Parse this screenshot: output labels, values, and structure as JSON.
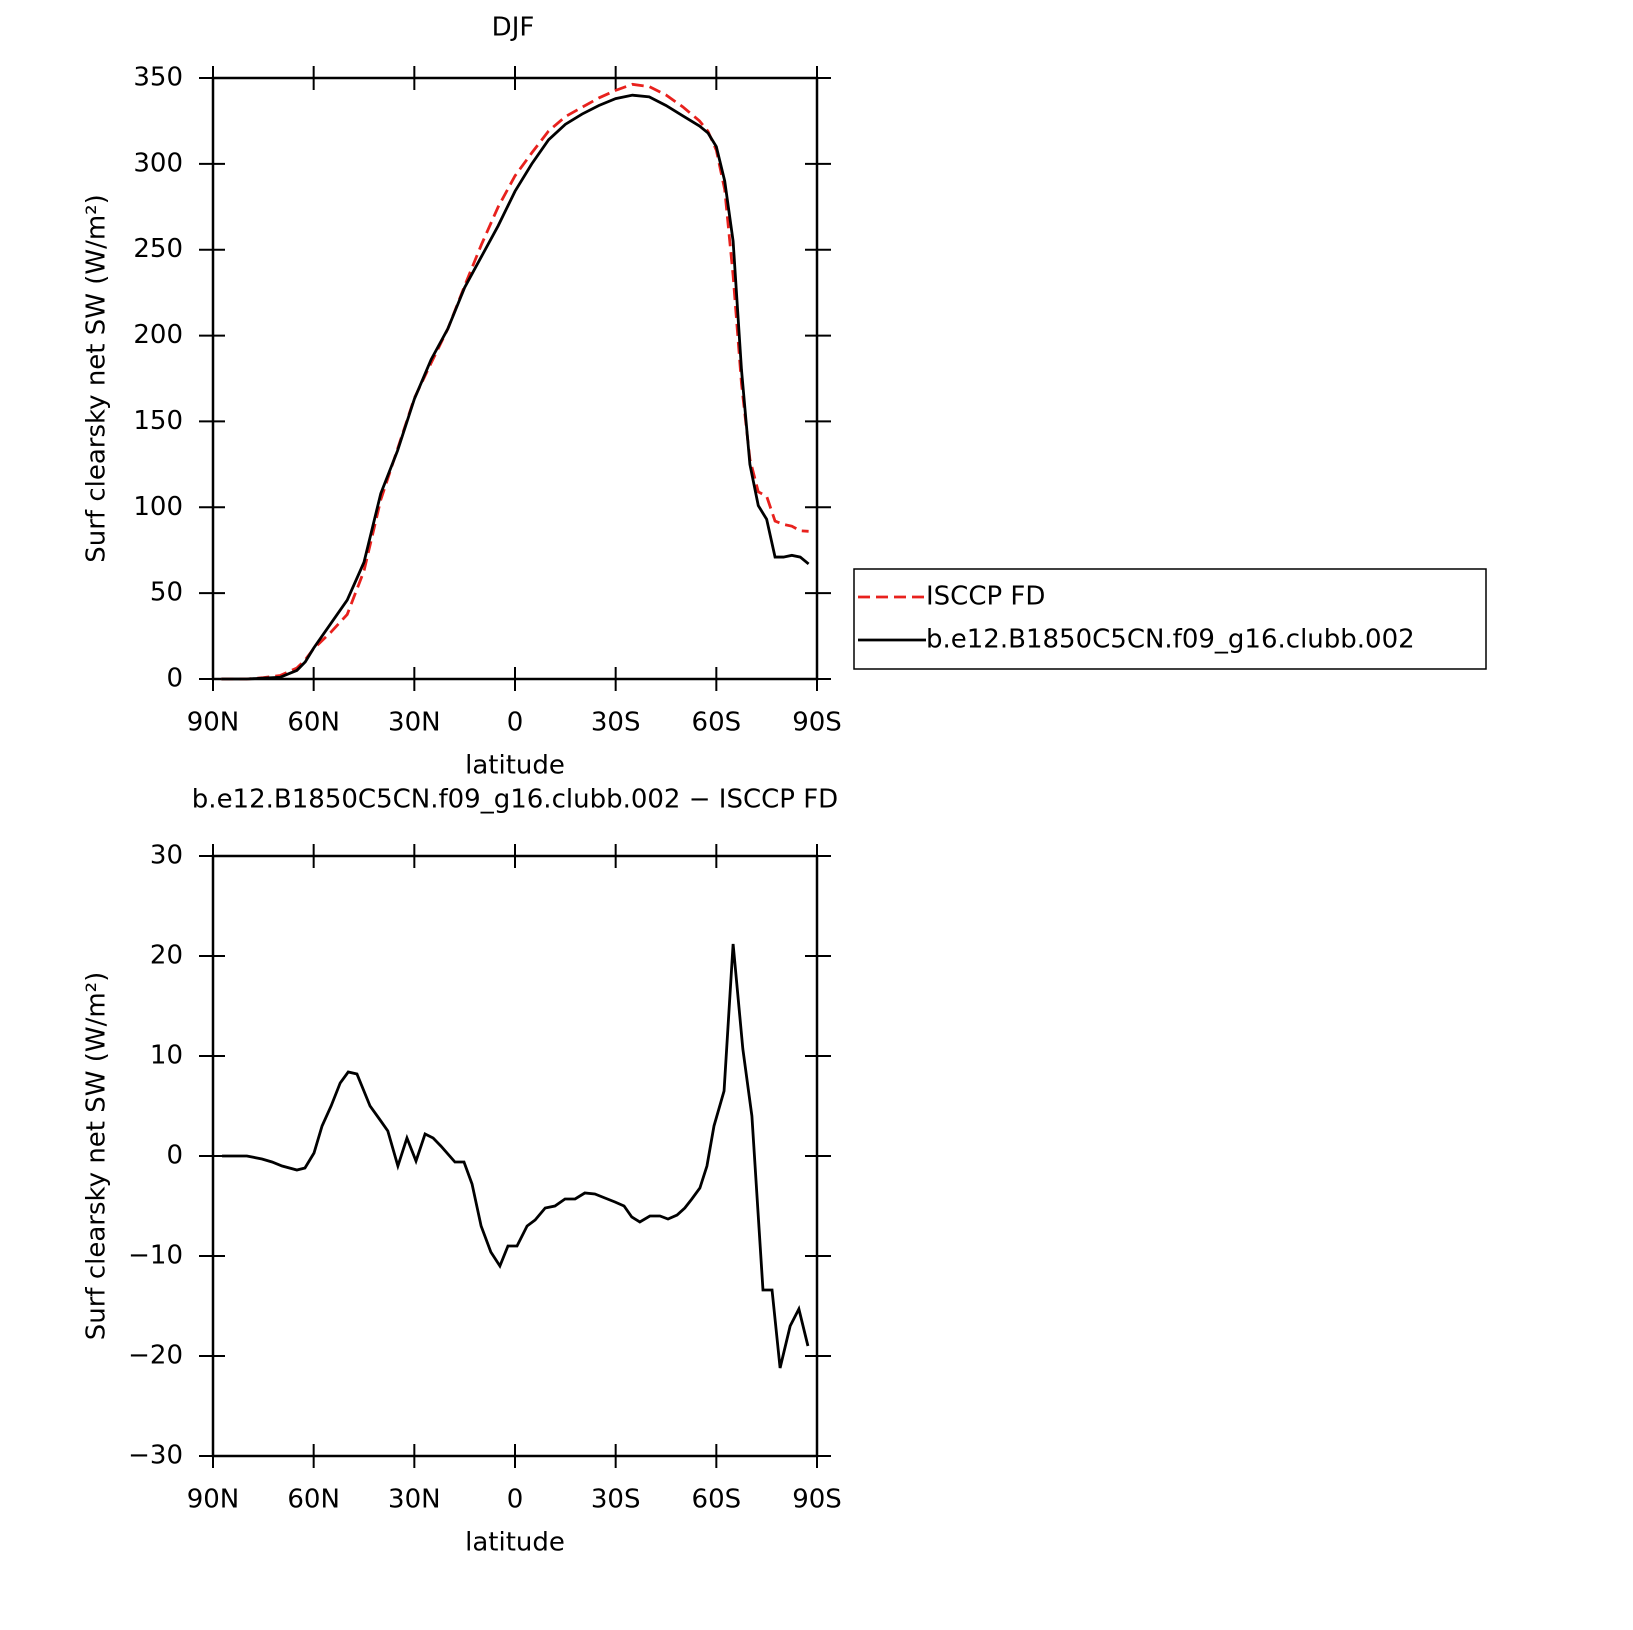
{
  "chart_data": [
    {
      "type": "line",
      "title": "DJF",
      "x_label": "latitude",
      "y_label": "Surf clearsky net SW (W/m²)",
      "xlim": [
        90,
        -90
      ],
      "xticks": [
        {
          "value": 90,
          "label": "90N"
        },
        {
          "value": 60,
          "label": "60N"
        },
        {
          "value": 30,
          "label": "30N"
        },
        0,
        {
          "value": -30,
          "label": "30S"
        },
        {
          "value": -60,
          "label": "60S"
        },
        {
          "value": -90,
          "label": "90S"
        }
      ],
      "ylim": [
        0,
        350
      ],
      "yticks": [
        0,
        50,
        100,
        150,
        200,
        250,
        300,
        350
      ],
      "legend": "right",
      "x": [
        87.5,
        80,
        75,
        70,
        67.5,
        65,
        62.5,
        60,
        55,
        50,
        45,
        40,
        35,
        30,
        25,
        20,
        15,
        10,
        5,
        0,
        -5,
        -10,
        -15,
        -20,
        -25,
        -30,
        -35,
        -40,
        -45,
        -50,
        -55,
        -57.5,
        -60,
        -62.5,
        -65,
        -67.5,
        -70,
        -72.5,
        -75,
        -77.5,
        -80,
        -82.5,
        -85,
        -87.5
      ],
      "series": [
        {
          "name": "ISCCP FD",
          "color": "#e8211d",
          "line_style": "dashed",
          "values": [
            0,
            0,
            0.8,
            2,
            4.2,
            6.4,
            11.2,
            17.7,
            27,
            37.6,
            63,
            104.4,
            134,
            163.5,
            184,
            204,
            229,
            253,
            275,
            293,
            306.4,
            319.1,
            327.5,
            333,
            338.4,
            342.8,
            346.3,
            345,
            340.1,
            333.2,
            325,
            319,
            308,
            285,
            235,
            172,
            128,
            109,
            106.4,
            92,
            90,
            89,
            86.3,
            86
          ]
        },
        {
          "name": "b.e12.B1850C5CN.f09_g16.clubb.002",
          "color": "#000000",
          "line_style": "solid",
          "values": [
            0,
            0,
            0.5,
            1,
            3,
            5,
            10,
            18,
            32,
            46,
            68,
            108,
            133,
            163,
            186,
            204,
            228,
            246,
            264,
            284,
            300,
            314,
            323,
            329,
            334,
            338,
            340,
            339,
            334,
            328,
            322,
            318,
            310,
            290,
            255,
            180,
            125,
            101,
            93,
            71,
            71,
            72,
            71,
            67
          ]
        }
      ]
    },
    {
      "type": "line",
      "title": "b.e12.B1850C5CN.f09_g16.clubb.002 − ISCCP FD",
      "x_label": "latitude",
      "y_label": "Surf clearsky net SW (W/m²)",
      "xlim": [
        90,
        -90
      ],
      "xticks": [
        {
          "value": 90,
          "label": "90N"
        },
        {
          "value": 60,
          "label": "60N"
        },
        {
          "value": 30,
          "label": "30N"
        },
        0,
        {
          "value": -30,
          "label": "30S"
        },
        {
          "value": -60,
          "label": "60S"
        },
        {
          "value": -90,
          "label": "90S"
        }
      ],
      "ylim": [
        -30,
        30
      ],
      "yticks": [
        {
          "value": -30,
          "label": "−30"
        },
        {
          "value": -20,
          "label": "−20"
        },
        {
          "value": -10,
          "label": "−10"
        },
        0,
        10,
        20,
        30
      ],
      "x": [
        87.3,
        79.9,
        75.4,
        72.4,
        69.4,
        65.0,
        62.6,
        59.9,
        57.5,
        54.8,
        52.1,
        49.7,
        47.1,
        43.2,
        40.2,
        37.9,
        34.9,
        32.2,
        29.5,
        26.8,
        24.4,
        22.1,
        17.9,
        15.2,
        12.8,
        10.1,
        7.2,
        4.5,
        2.1,
        -0.6,
        -3.6,
        -6.0,
        -9.0,
        -11.9,
        -14.9,
        -17.9,
        -20.8,
        -23.8,
        -26.8,
        -29.8,
        -32.5,
        -34.8,
        -37.2,
        -40.2,
        -43.2,
        -45.6,
        -48.3,
        -50.6,
        -52.7,
        -55.1,
        -57.2,
        -59.3,
        -62.3,
        -65.0,
        -67.9,
        -70.6,
        -73.9,
        -76.6,
        -79.0,
        -82.0,
        -84.6,
        -87.3
      ],
      "series": [
        {
          "color": "#000000",
          "line_style": "solid",
          "values": [
            0,
            0,
            -0.3,
            -0.6,
            -1,
            -1.4,
            -1.2,
            0.3,
            3,
            5,
            7.3,
            8.4,
            8.2,
            5,
            3.6,
            2.5,
            -1,
            1.8,
            -0.5,
            2.2,
            1.8,
            1,
            -0.6,
            -0.6,
            -2.8,
            -7,
            -9.6,
            -11,
            -9,
            -9,
            -7,
            -6.4,
            -5.2,
            -5,
            -4.3,
            -4.3,
            -3.7,
            -3.8,
            -4.2,
            -4.6,
            -5,
            -6.1,
            -6.6,
            -6,
            -6,
            -6.3,
            -5.9,
            -5.2,
            -4.3,
            -3.2,
            -1,
            3,
            6.5,
            21.2,
            10.7,
            4,
            -13.4,
            -13.4,
            -21.2,
            -17,
            -15.3,
            -19
          ]
        }
      ]
    }
  ]
}
